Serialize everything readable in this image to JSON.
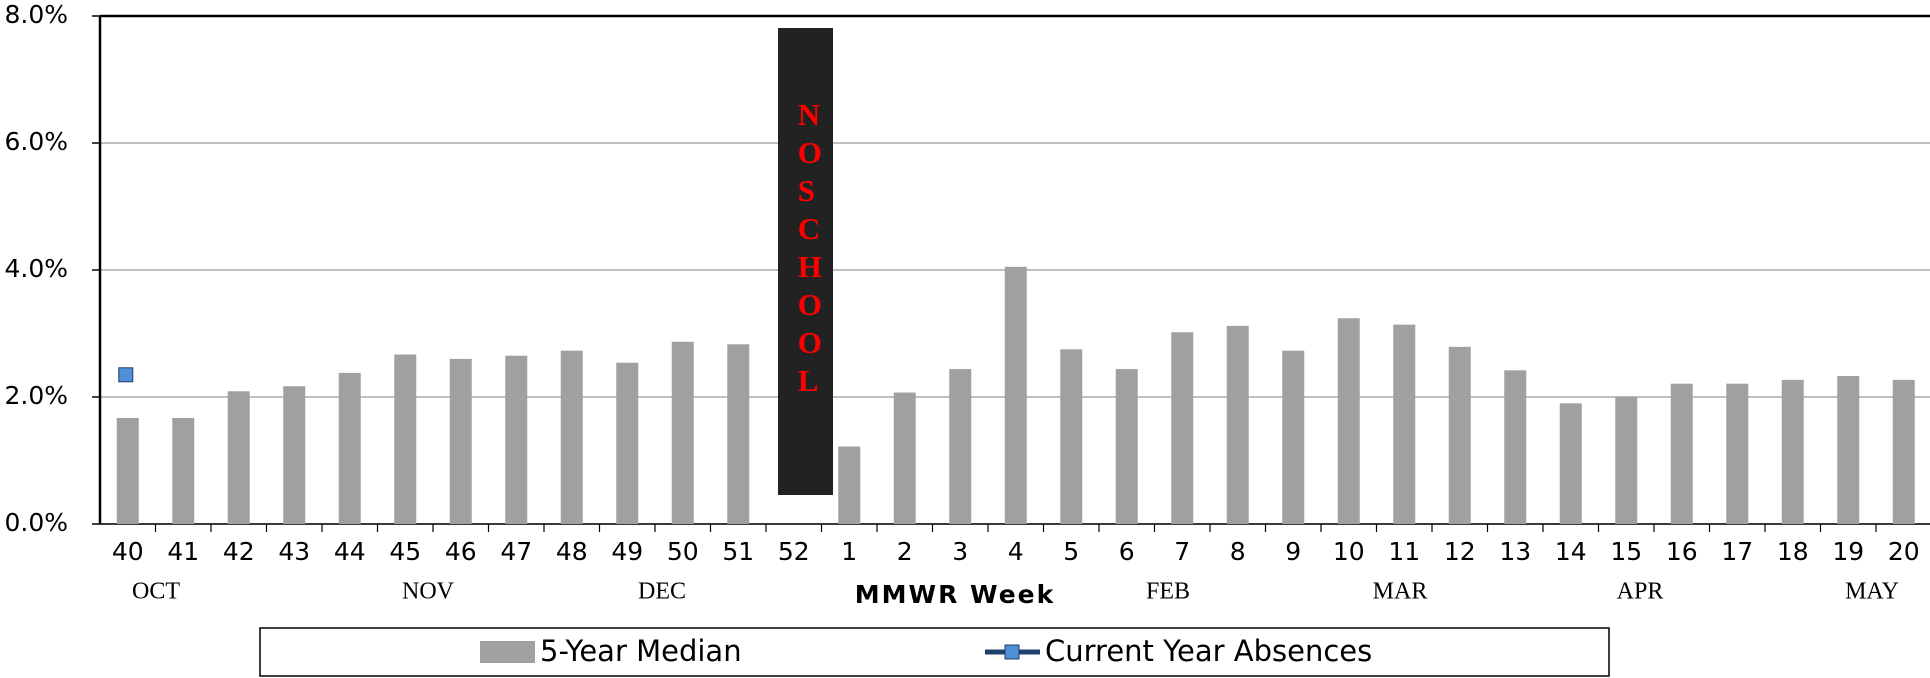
{
  "chart_data": {
    "type": "bar",
    "x_label": "MMWR Week",
    "annotation": "NO SCHOOL",
    "categories": [
      "40",
      "41",
      "42",
      "43",
      "44",
      "45",
      "46",
      "47",
      "48",
      "49",
      "50",
      "51",
      "52",
      "1",
      "2",
      "3",
      "4",
      "5",
      "6",
      "7",
      "8",
      "9",
      "10",
      "11",
      "12",
      "13",
      "14",
      "15",
      "16",
      "17",
      "18",
      "19",
      "20"
    ],
    "months": [
      "OCT",
      "NOV",
      "DEC",
      "FEB",
      "MAR",
      "APR",
      "MAY"
    ],
    "series": [
      {
        "name": "5-Year Median",
        "type": "bar",
        "color": "#a0a0a0",
        "values": [
          1.67,
          1.67,
          2.09,
          2.17,
          2.38,
          2.67,
          2.6,
          2.65,
          2.73,
          2.54,
          2.87,
          2.83,
          null,
          1.22,
          2.07,
          2.44,
          4.05,
          2.75,
          2.44,
          3.02,
          3.12,
          2.73,
          3.24,
          3.14,
          2.79,
          2.42,
          1.9,
          2.0,
          2.21,
          2.21,
          2.27,
          2.33,
          2.27
        ]
      },
      {
        "name": "Current Year Absences",
        "type": "line",
        "color": "#4f8fd6",
        "values": [
          2.35,
          null,
          null,
          null,
          null,
          null,
          null,
          null,
          null,
          null,
          null,
          null,
          null,
          null,
          null,
          null,
          null,
          null,
          null,
          null,
          null,
          null,
          null,
          null,
          null,
          null,
          null,
          null,
          null,
          null,
          null,
          null,
          null
        ]
      }
    ],
    "ylim": [
      0,
      8
    ],
    "yticks": [
      {
        "value": 0,
        "label": "0.0%"
      },
      {
        "value": 2,
        "label": "2.0%"
      },
      {
        "value": 4,
        "label": "4.0%"
      },
      {
        "value": 6,
        "label": "6.0%"
      },
      {
        "value": 8,
        "label": "8.0%"
      }
    ],
    "grid": true
  }
}
